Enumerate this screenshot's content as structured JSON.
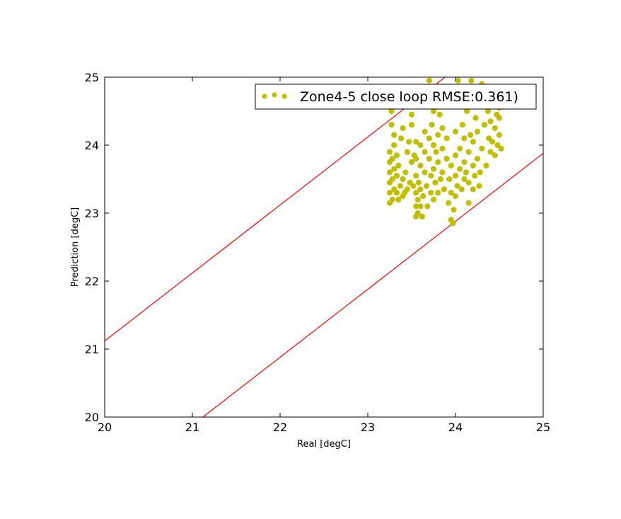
{
  "chart_data": {
    "type": "scatter",
    "xlabel": "Real [degC]",
    "ylabel": "Prediction [degC]",
    "xlim": [
      20,
      25
    ],
    "ylim": [
      20,
      25
    ],
    "xticks": [
      "20",
      "21",
      "22",
      "23",
      "24",
      "25"
    ],
    "yticks": [
      "20",
      "21",
      "22",
      "23",
      "24",
      "25"
    ],
    "grid": false,
    "legend_position": "top-right",
    "series": [
      {
        "name": "Zone4-5 close loop RMSE:0.361)",
        "color": "#bfbf00",
        "points": [
          [
            23.25,
            23.15
          ],
          [
            23.25,
            23.3
          ],
          [
            23.25,
            23.45
          ],
          [
            23.25,
            23.6
          ],
          [
            23.25,
            23.75
          ],
          [
            23.25,
            23.9
          ],
          [
            23.27,
            24.3
          ],
          [
            23.27,
            24.5
          ],
          [
            23.28,
            23.2
          ],
          [
            23.28,
            23.5
          ],
          [
            23.28,
            23.8
          ],
          [
            23.3,
            23.35
          ],
          [
            23.3,
            23.65
          ],
          [
            23.3,
            24.0
          ],
          [
            23.3,
            24.15
          ],
          [
            23.33,
            23.3
          ],
          [
            23.33,
            23.55
          ],
          [
            23.33,
            23.85
          ],
          [
            23.35,
            23.2
          ],
          [
            23.35,
            23.7
          ],
          [
            23.37,
            23.4
          ],
          [
            23.38,
            24.1
          ],
          [
            23.4,
            23.25
          ],
          [
            23.4,
            23.5
          ],
          [
            23.4,
            24.25
          ],
          [
            23.42,
            23.3
          ],
          [
            23.43,
            23.6
          ],
          [
            23.45,
            23.35
          ],
          [
            23.45,
            23.9
          ],
          [
            23.47,
            24.05
          ],
          [
            23.48,
            23.45
          ],
          [
            23.5,
            23.75
          ],
          [
            23.5,
            24.3
          ],
          [
            23.5,
            24.45
          ],
          [
            23.52,
            23.4
          ],
          [
            23.53,
            23.85
          ],
          [
            23.55,
            22.95
          ],
          [
            23.55,
            23.1
          ],
          [
            23.55,
            23.3
          ],
          [
            23.55,
            23.55
          ],
          [
            23.55,
            23.8
          ],
          [
            23.55,
            24.05
          ],
          [
            23.57,
            23.0
          ],
          [
            23.57,
            23.2
          ],
          [
            23.58,
            23.45
          ],
          [
            23.6,
            23.1
          ],
          [
            23.6,
            23.35
          ],
          [
            23.6,
            23.7
          ],
          [
            23.6,
            24.0
          ],
          [
            23.62,
            22.95
          ],
          [
            23.63,
            23.25
          ],
          [
            23.65,
            23.6
          ],
          [
            23.65,
            23.9
          ],
          [
            23.65,
            24.2
          ],
          [
            23.67,
            23.4
          ],
          [
            23.67,
            24.6
          ],
          [
            23.68,
            23.1
          ],
          [
            23.7,
            23.8
          ],
          [
            23.7,
            24.1
          ],
          [
            23.7,
            24.95
          ],
          [
            23.72,
            23.3
          ],
          [
            23.72,
            23.55
          ],
          [
            23.73,
            24.3
          ],
          [
            23.75,
            23.2
          ],
          [
            23.75,
            23.65
          ],
          [
            23.75,
            24.0
          ],
          [
            23.75,
            24.5
          ],
          [
            23.77,
            23.45
          ],
          [
            23.78,
            23.9
          ],
          [
            23.8,
            23.3
          ],
          [
            23.8,
            23.75
          ],
          [
            23.8,
            24.15
          ],
          [
            23.82,
            24.45
          ],
          [
            23.83,
            23.5
          ],
          [
            23.85,
            23.6
          ],
          [
            23.85,
            23.95
          ],
          [
            23.85,
            24.25
          ],
          [
            23.87,
            23.35
          ],
          [
            23.88,
            24.7
          ],
          [
            23.9,
            23.8
          ],
          [
            23.9,
            24.1
          ],
          [
            23.92,
            23.15
          ],
          [
            23.93,
            23.5
          ],
          [
            23.95,
            22.9
          ],
          [
            23.95,
            23.3
          ],
          [
            23.95,
            23.7
          ],
          [
            23.97,
            22.85
          ],
          [
            23.98,
            23.05
          ],
          [
            24.0,
            23.25
          ],
          [
            24.0,
            23.55
          ],
          [
            24.0,
            23.85
          ],
          [
            24.0,
            24.2
          ],
          [
            24.02,
            23.4
          ],
          [
            24.03,
            24.95
          ],
          [
            24.05,
            23.65
          ],
          [
            24.05,
            23.95
          ],
          [
            24.07,
            23.35
          ],
          [
            24.08,
            24.3
          ],
          [
            24.1,
            23.5
          ],
          [
            24.1,
            23.75
          ],
          [
            24.1,
            24.1
          ],
          [
            24.12,
            23.6
          ],
          [
            24.13,
            24.5
          ],
          [
            24.15,
            23.15
          ],
          [
            24.15,
            23.45
          ],
          [
            24.15,
            23.9
          ],
          [
            24.17,
            24.15
          ],
          [
            24.18,
            24.7
          ],
          [
            24.18,
            24.95
          ],
          [
            24.2,
            23.35
          ],
          [
            24.2,
            23.7
          ],
          [
            24.2,
            24.05
          ],
          [
            24.22,
            23.55
          ],
          [
            24.23,
            24.4
          ],
          [
            24.25,
            23.8
          ],
          [
            24.25,
            24.2
          ],
          [
            24.27,
            23.4
          ],
          [
            24.28,
            23.6
          ],
          [
            24.28,
            24.6
          ],
          [
            24.3,
            24.9
          ],
          [
            24.3,
            23.95
          ],
          [
            24.33,
            24.3
          ],
          [
            24.35,
            23.7
          ],
          [
            24.37,
            24.5
          ],
          [
            24.38,
            24.1
          ],
          [
            24.4,
            23.9
          ],
          [
            24.4,
            24.35
          ],
          [
            24.42,
            24.05
          ],
          [
            24.43,
            24.6
          ],
          [
            24.45,
            23.85
          ],
          [
            24.45,
            24.25
          ],
          [
            24.47,
            24.45
          ],
          [
            24.48,
            24.0
          ],
          [
            24.5,
            24.15
          ],
          [
            24.5,
            24.4
          ],
          [
            24.5,
            24.55
          ],
          [
            24.52,
            23.95
          ]
        ]
      }
    ],
    "lines": [
      {
        "color": "#ff0000",
        "points": [
          [
            20,
            21.12
          ],
          [
            23.88,
            25
          ]
        ]
      },
      {
        "color": "#ff0000",
        "points": [
          [
            21.12,
            20
          ],
          [
            25,
            23.88
          ]
        ]
      }
    ]
  }
}
